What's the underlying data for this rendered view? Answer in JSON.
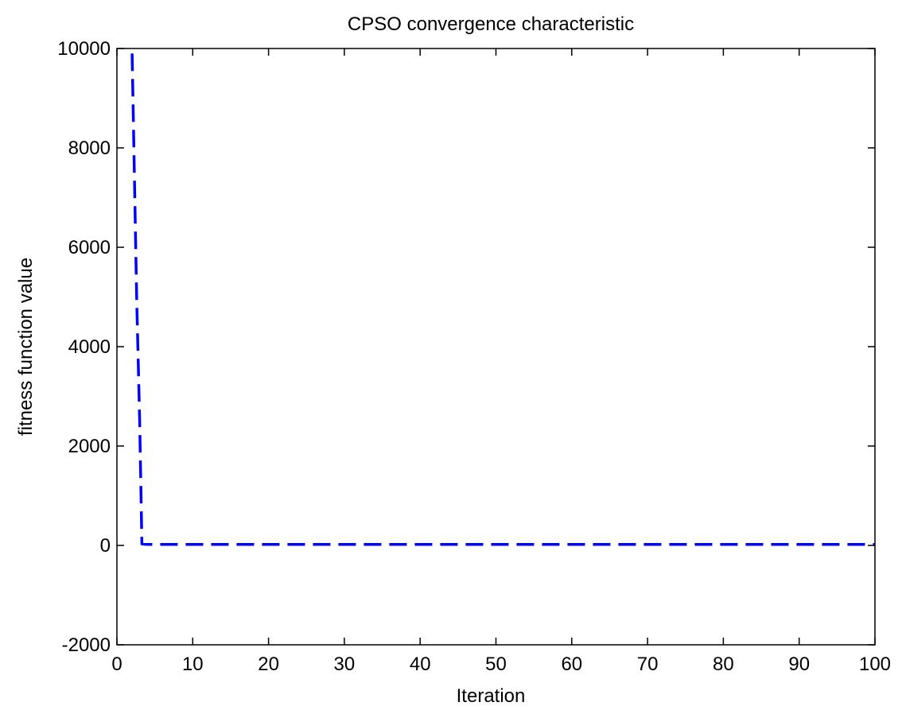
{
  "chart_data": {
    "type": "line",
    "title": "CPSO convergence characteristic",
    "xlabel": "Iteration",
    "ylabel": "fitness function value",
    "xlim": [
      0,
      100
    ],
    "ylim": [
      -2000,
      10000
    ],
    "xticks": [
      "0",
      "10",
      "20",
      "30",
      "40",
      "50",
      "60",
      "70",
      "80",
      "90",
      "100"
    ],
    "yticks": [
      "-2000",
      "0",
      "2000",
      "4000",
      "6000",
      "8000",
      "10000"
    ],
    "grid": false,
    "series": [
      {
        "color": "#0000ff",
        "line_style": "dashed",
        "x": [
          2,
          2.3,
          2.6,
          3,
          3.3,
          4,
          10,
          20,
          30,
          40,
          50,
          60,
          70,
          80,
          90,
          100
        ],
        "y": [
          9900,
          7500,
          5000,
          2500,
          30,
          20,
          20,
          20,
          20,
          20,
          20,
          20,
          20,
          20,
          20,
          20
        ]
      }
    ]
  }
}
